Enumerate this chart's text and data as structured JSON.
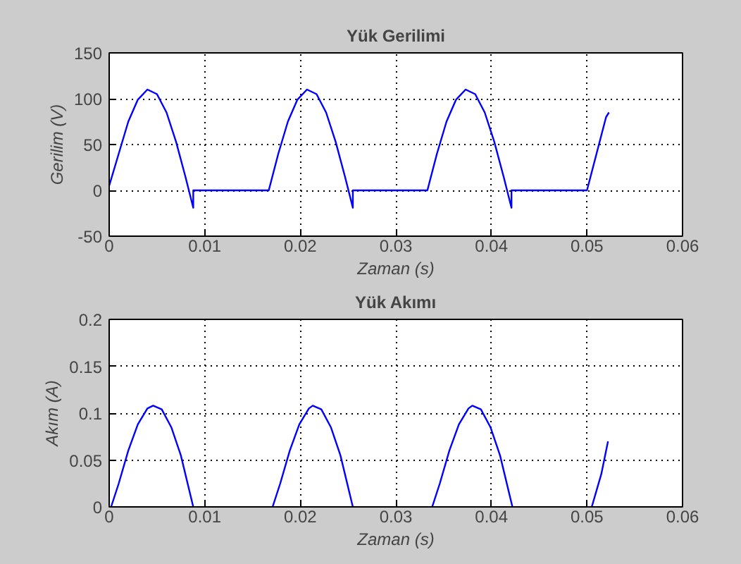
{
  "chart_data": [
    {
      "type": "line",
      "title": "Yük Gerilimi",
      "xlabel": "Zaman (s)",
      "ylabel": "Gerilim (V)",
      "xlim": [
        0,
        0.06
      ],
      "ylim": [
        -50,
        150
      ],
      "xticks": [
        0,
        0.01,
        0.02,
        0.03,
        0.04,
        0.05,
        0.06
      ],
      "yticks": [
        -50,
        0,
        50,
        100,
        150
      ],
      "grid": true,
      "line_style": "solid",
      "marker": "none",
      "series": [
        {
          "color": "#0000ff",
          "x": [
            0,
            0.001,
            0.002,
            0.003,
            0.004,
            0.005,
            0.006,
            0.007,
            0.008,
            0.0088,
            0.0088,
            0.0167,
            0.0177,
            0.0187,
            0.0197,
            0.0207,
            0.0217,
            0.0227,
            0.0237,
            0.0247,
            0.0255,
            0.0255,
            0.0333,
            0.0343,
            0.0353,
            0.0363,
            0.0373,
            0.0383,
            0.0393,
            0.0403,
            0.0413,
            0.0421,
            0.0421,
            0.05,
            0.051,
            0.0515,
            0.052,
            0.0523
          ],
          "values": [
            5,
            40,
            75,
            99,
            110,
            105,
            85,
            53,
            14,
            -19,
            0,
            0,
            40,
            75,
            99,
            110,
            105,
            85,
            53,
            14,
            -19,
            0,
            0,
            40,
            75,
            99,
            110,
            105,
            85,
            53,
            14,
            -19,
            0,
            0,
            40,
            60,
            80,
            85
          ]
        }
      ]
    },
    {
      "type": "line",
      "title": "Yük Akımı",
      "xlabel": "Zaman (s)",
      "ylabel": "Akım (A)",
      "xlim": [
        0,
        0.06
      ],
      "ylim": [
        0,
        0.2
      ],
      "xticks": [
        0,
        0.01,
        0.02,
        0.03,
        0.04,
        0.05,
        0.06
      ],
      "yticks": [
        0,
        0.05,
        0.1,
        0.15,
        0.2
      ],
      "grid": true,
      "line_style": "solid",
      "marker": "none",
      "series": [
        {
          "color": "#0000ff",
          "x": [
            0.0002,
            0.001,
            0.002,
            0.003,
            0.004,
            0.0046,
            0.0055,
            0.0065,
            0.0075,
            0.0088
          ],
          "values": [
            0,
            0.025,
            0.06,
            0.088,
            0.105,
            0.108,
            0.104,
            0.085,
            0.055,
            0
          ]
        },
        {
          "color": "#0000ff",
          "x": [
            0.0171,
            0.0179,
            0.0189,
            0.0199,
            0.0209,
            0.0213,
            0.0222,
            0.0232,
            0.0242,
            0.0255
          ],
          "values": [
            0,
            0.025,
            0.06,
            0.088,
            0.105,
            0.108,
            0.104,
            0.085,
            0.055,
            0
          ]
        },
        {
          "color": "#0000ff",
          "x": [
            0.0338,
            0.0346,
            0.0356,
            0.0366,
            0.0376,
            0.038,
            0.0389,
            0.0399,
            0.0409,
            0.0422
          ],
          "values": [
            0,
            0.025,
            0.06,
            0.088,
            0.105,
            0.108,
            0.104,
            0.085,
            0.055,
            0
          ]
        },
        {
          "color": "#0000ff",
          "x": [
            0.0505,
            0.0515,
            0.0522
          ],
          "values": [
            0,
            0.035,
            0.07
          ]
        }
      ]
    }
  ]
}
